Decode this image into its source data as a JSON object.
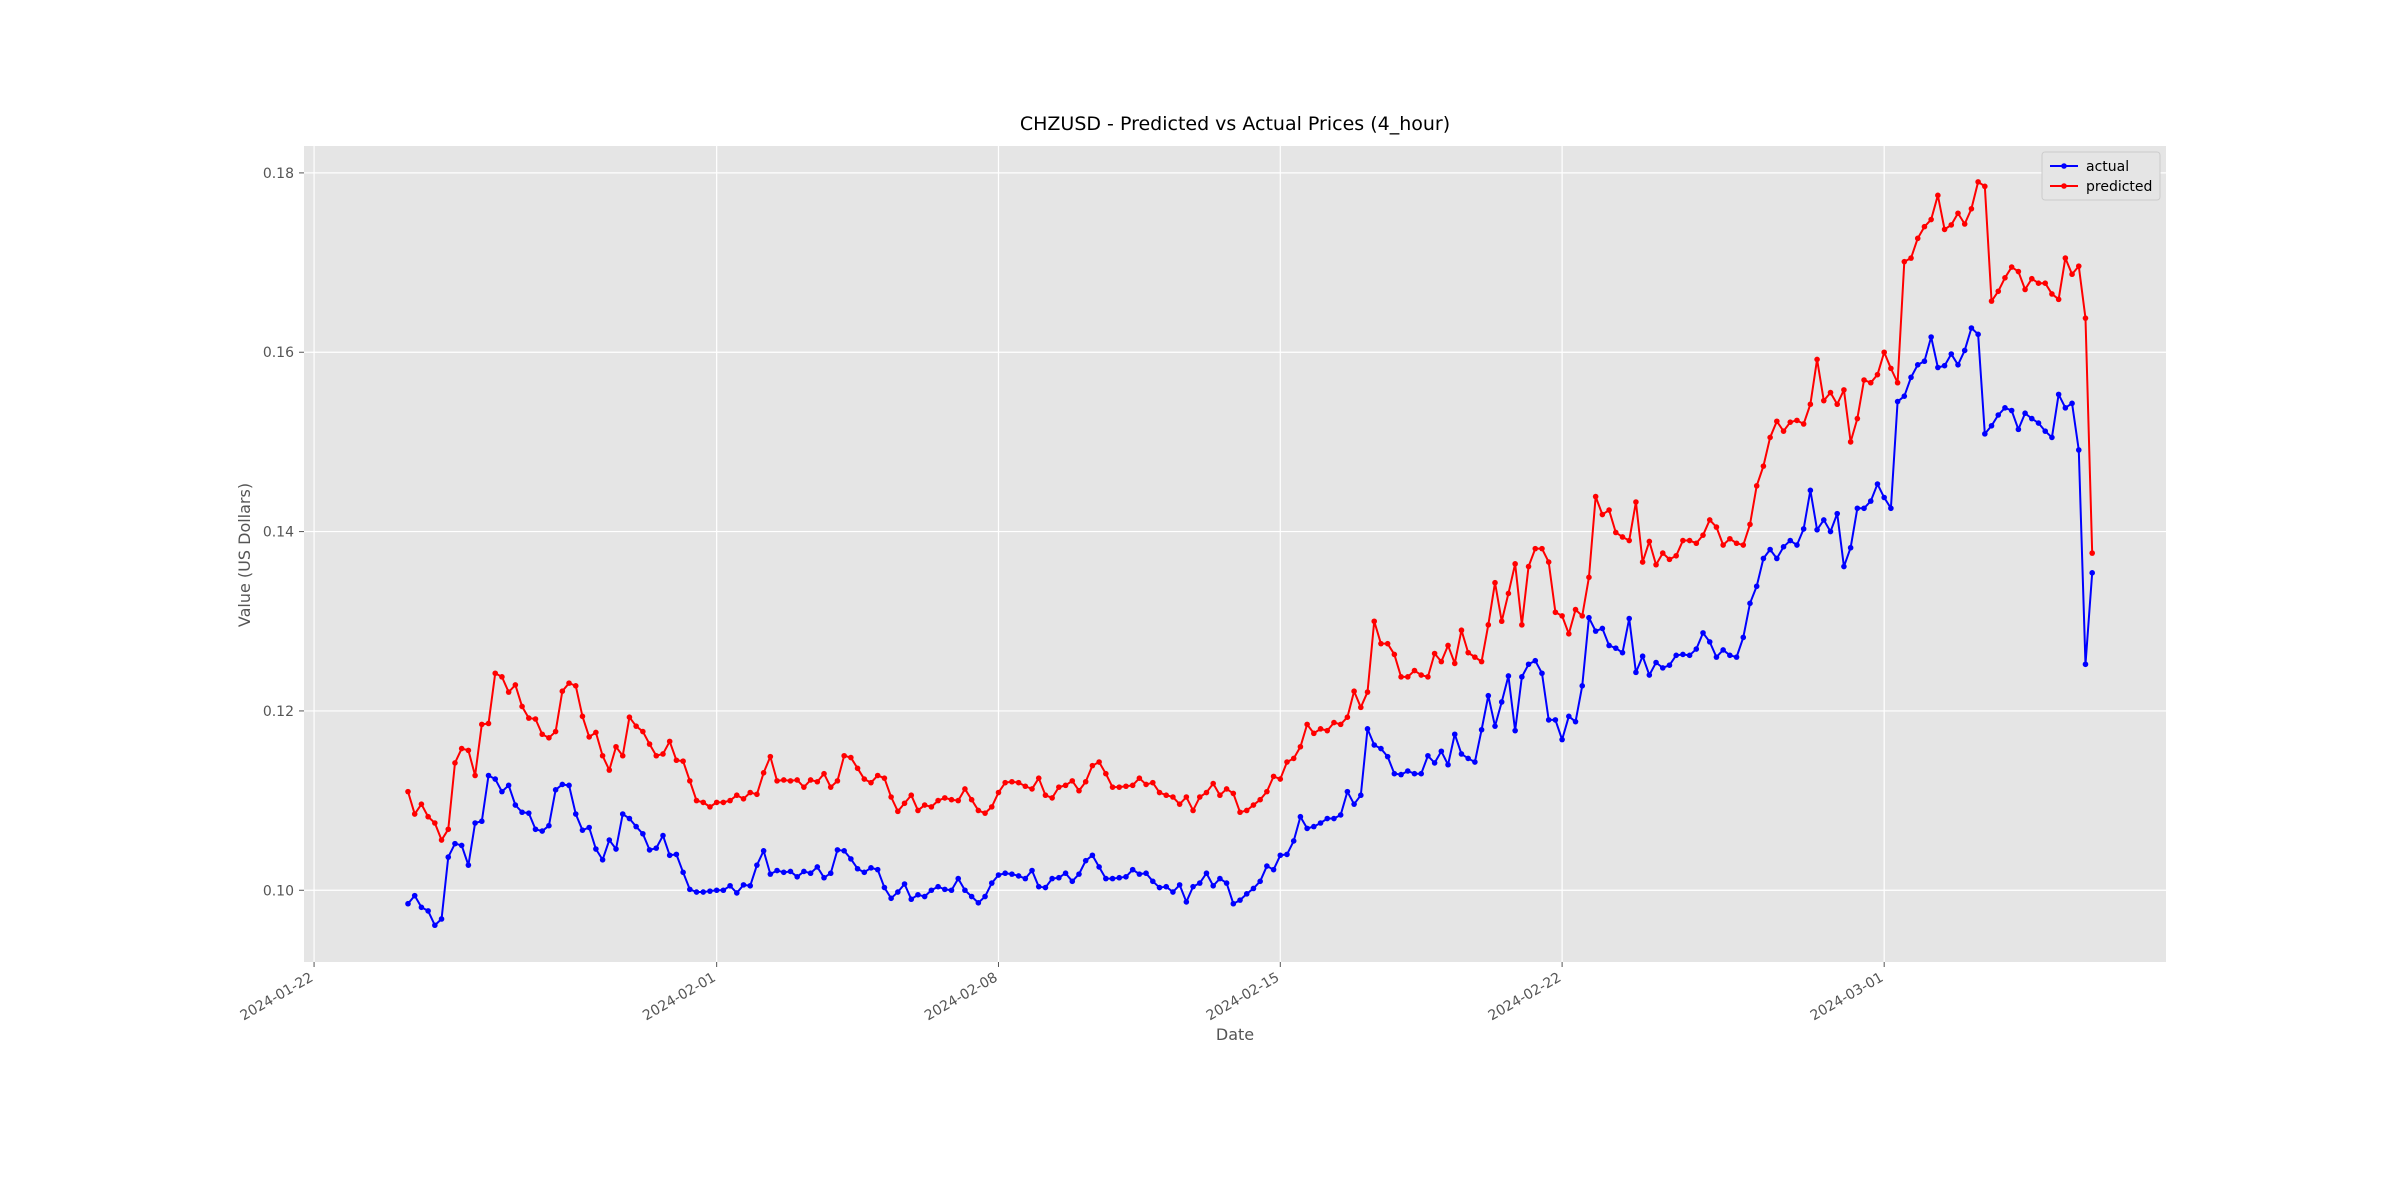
{
  "chart_data": {
    "type": "line",
    "title": "CHZUSD - Predicted vs Actual Prices (4_hour)",
    "xlabel": "Date",
    "ylabel": "Value (US Dollars)",
    "x_start": "2024-01-24T08:00",
    "x_step_hours": 4,
    "xlim": [
      "2024-01-21T18:00",
      "2024-03-08T00:00"
    ],
    "ylim": [
      0.092,
      0.183
    ],
    "x_ticks": [
      "2024-01-22",
      "2024-02-01",
      "2024-02-08",
      "2024-02-15",
      "2024-02-22",
      "2024-03-01"
    ],
    "y_ticks": [
      "0.10",
      "0.12",
      "0.14",
      "0.16",
      "0.18"
    ],
    "grid": true,
    "legend_position": "top-right",
    "series": [
      {
        "name": "actual",
        "color": "#0000ff",
        "values": [
          0.0985,
          0.0994,
          0.0981,
          0.0977,
          0.0961,
          0.0968,
          0.1037,
          0.1052,
          0.105,
          0.1028,
          0.1075,
          0.1077,
          0.1128,
          0.1124,
          0.111,
          0.1117,
          0.1095,
          0.1087,
          0.1086,
          0.1068,
          0.1066,
          0.1072,
          0.1112,
          0.1118,
          0.1117,
          0.1085,
          0.1067,
          0.107,
          0.1046,
          0.1034,
          0.1056,
          0.1046,
          0.1085,
          0.108,
          0.1071,
          0.1063,
          0.1045,
          0.1047,
          0.1061,
          0.1039,
          0.104,
          0.102,
          0.1001,
          0.0998,
          0.0998,
          0.0999,
          0.1,
          0.1,
          0.1005,
          0.0997,
          0.1006,
          0.1005,
          0.1028,
          0.1044,
          0.1018,
          0.1022,
          0.102,
          0.1021,
          0.1015,
          0.1021,
          0.1019,
          0.1026,
          0.1014,
          0.1019,
          0.1045,
          0.1044,
          0.1035,
          0.1024,
          0.102,
          0.1025,
          0.1023,
          0.1003,
          0.0991,
          0.0998,
          0.1007,
          0.099,
          0.0995,
          0.0993,
          0.1,
          0.1004,
          0.1001,
          0.1,
          0.1013,
          0.1,
          0.0993,
          0.0986,
          0.0993,
          0.1008,
          0.1017,
          0.1019,
          0.1018,
          0.1016,
          0.1013,
          0.1022,
          0.1004,
          0.1003,
          0.1013,
          0.1014,
          0.1019,
          0.101,
          0.1018,
          0.1033,
          0.1039,
          0.1026,
          0.1013,
          0.1013,
          0.1014,
          0.1015,
          0.1023,
          0.1018,
          0.1019,
          0.101,
          0.1003,
          0.1004,
          0.0998,
          0.1006,
          0.0987,
          0.1004,
          0.1008,
          0.1019,
          0.1005,
          0.1013,
          0.1008,
          0.0985,
          0.0989,
          0.0996,
          0.1002,
          0.101,
          0.1027,
          0.1023,
          0.1039,
          0.104,
          0.1055,
          0.1082,
          0.1069,
          0.1071,
          0.1075,
          0.108,
          0.108,
          0.1084,
          0.111,
          0.1096,
          0.1106,
          0.118,
          0.1162,
          0.1158,
          0.1149,
          0.113,
          0.1129,
          0.1133,
          0.113,
          0.113,
          0.115,
          0.1142,
          0.1155,
          0.114,
          0.1174,
          0.1152,
          0.1147,
          0.1143,
          0.1179,
          0.1217,
          0.1183,
          0.121,
          0.1239,
          0.1178,
          0.1238,
          0.1252,
          0.1256,
          0.1242,
          0.119,
          0.119,
          0.1168,
          0.1194,
          0.1188,
          0.1228,
          0.1304,
          0.1289,
          0.1292,
          0.1273,
          0.127,
          0.1265,
          0.1303,
          0.1243,
          0.1261,
          0.124,
          0.1254,
          0.1248,
          0.1251,
          0.1262,
          0.1263,
          0.1262,
          0.1269,
          0.1287,
          0.1277,
          0.126,
          0.1268,
          0.1262,
          0.126,
          0.1282,
          0.132,
          0.1339,
          0.137,
          0.138,
          0.137,
          0.1383,
          0.139,
          0.1385,
          0.1403,
          0.1446,
          0.1402,
          0.1413,
          0.14,
          0.142,
          0.1361,
          0.1382,
          0.1426,
          0.1426,
          0.1434,
          0.1453,
          0.1438,
          0.1426,
          0.1545,
          0.1551,
          0.1572,
          0.1586,
          0.159,
          0.1617,
          0.1583,
          0.1585,
          0.1598,
          0.1586,
          0.1602,
          0.1627,
          0.162,
          0.1509,
          0.1518,
          0.153,
          0.1538,
          0.1535,
          0.1514,
          0.1532,
          0.1526,
          0.1521,
          0.1512,
          0.1505,
          0.1553,
          0.1538,
          0.1543,
          0.1491,
          0.1252,
          0.1354
        ]
      },
      {
        "name": "predicted",
        "color": "#ff0000",
        "values": [
          0.111,
          0.1085,
          0.1096,
          0.1082,
          0.1075,
          0.1056,
          0.1068,
          0.1142,
          0.1158,
          0.1156,
          0.1128,
          0.1185,
          0.1186,
          0.1242,
          0.1238,
          0.1221,
          0.1229,
          0.1205,
          0.1192,
          0.1191,
          0.1174,
          0.117,
          0.1177,
          0.1222,
          0.1231,
          0.1228,
          0.1194,
          0.1171,
          0.1176,
          0.115,
          0.1134,
          0.116,
          0.115,
          0.1193,
          0.1183,
          0.1177,
          0.1163,
          0.115,
          0.1152,
          0.1166,
          0.1145,
          0.1144,
          0.1122,
          0.11,
          0.1098,
          0.1093,
          0.1098,
          0.1098,
          0.11,
          0.1106,
          0.1102,
          0.1109,
          0.1107,
          0.1131,
          0.1149,
          0.1122,
          0.1123,
          0.1122,
          0.1123,
          0.1115,
          0.1123,
          0.1121,
          0.113,
          0.1115,
          0.1122,
          0.115,
          0.1148,
          0.1136,
          0.1124,
          0.112,
          0.1128,
          0.1125,
          0.1104,
          0.1088,
          0.1097,
          0.1106,
          0.1089,
          0.1095,
          0.1093,
          0.11,
          0.1103,
          0.1101,
          0.11,
          0.1113,
          0.1101,
          0.1089,
          0.1086,
          0.1093,
          0.1109,
          0.112,
          0.1121,
          0.112,
          0.1116,
          0.1113,
          0.1125,
          0.1106,
          0.1103,
          0.1115,
          0.1117,
          0.1122,
          0.1111,
          0.1121,
          0.1139,
          0.1143,
          0.113,
          0.1115,
          0.1115,
          0.1116,
          0.1117,
          0.1125,
          0.1118,
          0.112,
          0.1109,
          0.1106,
          0.1104,
          0.1096,
          0.1104,
          0.1089,
          0.1104,
          0.1109,
          0.1119,
          0.1106,
          0.1113,
          0.1108,
          0.1087,
          0.1089,
          0.1095,
          0.1101,
          0.111,
          0.1127,
          0.1124,
          0.1143,
          0.1147,
          0.116,
          0.1185,
          0.1175,
          0.118,
          0.1178,
          0.1187,
          0.1185,
          0.1193,
          0.1222,
          0.1204,
          0.1221,
          0.13,
          0.1275,
          0.1275,
          0.1263,
          0.1238,
          0.1238,
          0.1245,
          0.124,
          0.1238,
          0.1264,
          0.1255,
          0.1273,
          0.1253,
          0.129,
          0.1265,
          0.126,
          0.1255,
          0.1296,
          0.1343,
          0.13,
          0.1331,
          0.1364,
          0.1296,
          0.1361,
          0.1381,
          0.1381,
          0.1366,
          0.131,
          0.1306,
          0.1286,
          0.1313,
          0.1306,
          0.1349,
          0.1439,
          0.1419,
          0.1424,
          0.1399,
          0.1394,
          0.139,
          0.1433,
          0.1366,
          0.1389,
          0.1363,
          0.1376,
          0.1369,
          0.1373,
          0.139,
          0.139,
          0.1387,
          0.1396,
          0.1413,
          0.1405,
          0.1385,
          0.1392,
          0.1387,
          0.1385,
          0.1408,
          0.1451,
          0.1473,
          0.1505,
          0.1523,
          0.1512,
          0.1522,
          0.1524,
          0.152,
          0.1542,
          0.1592,
          0.1546,
          0.1555,
          0.1542,
          0.1558,
          0.15,
          0.1526,
          0.1569,
          0.1566,
          0.1575,
          0.16,
          0.1582,
          0.1566,
          0.1701,
          0.1705,
          0.1727,
          0.174,
          0.1748,
          0.1775,
          0.1737,
          0.1742,
          0.1755,
          0.1743,
          0.176,
          0.179,
          0.1785,
          0.1657,
          0.1668,
          0.1683,
          0.1695,
          0.169,
          0.167,
          0.1682,
          0.1677,
          0.1677,
          0.1665,
          0.1659,
          0.1705,
          0.1687,
          0.1696,
          0.1638,
          0.1376
        ]
      }
    ]
  }
}
